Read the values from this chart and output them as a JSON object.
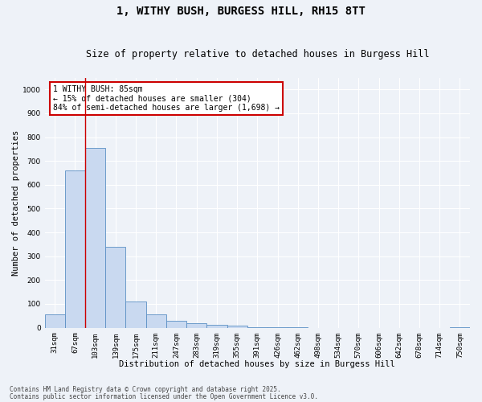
{
  "title1": "1, WITHY BUSH, BURGESS HILL, RH15 8TT",
  "title2": "Size of property relative to detached houses in Burgess Hill",
  "xlabel": "Distribution of detached houses by size in Burgess Hill",
  "ylabel": "Number of detached properties",
  "categories": [
    "31sqm",
    "67sqm",
    "103sqm",
    "139sqm",
    "175sqm",
    "211sqm",
    "247sqm",
    "283sqm",
    "319sqm",
    "355sqm",
    "391sqm",
    "426sqm",
    "462sqm",
    "498sqm",
    "534sqm",
    "570sqm",
    "606sqm",
    "642sqm",
    "678sqm",
    "714sqm",
    "750sqm"
  ],
  "values": [
    55,
    660,
    755,
    340,
    110,
    55,
    30,
    20,
    12,
    8,
    3,
    1,
    1,
    0,
    0,
    0,
    0,
    0,
    0,
    0,
    2
  ],
  "bar_color": "#c9d9f0",
  "bar_edge_color": "#5b8fc4",
  "annotation_line1": "1 WITHY BUSH: 85sqm",
  "annotation_line2": "← 15% of detached houses are smaller (304)",
  "annotation_line3": "84% of semi-detached houses are larger (1,698) →",
  "annotation_box_color": "#ffffff",
  "annotation_box_edge_color": "#cc0000",
  "vline_color": "#cc0000",
  "vline_x": 1.5,
  "ylim": [
    0,
    1050
  ],
  "yticks": [
    0,
    100,
    200,
    300,
    400,
    500,
    600,
    700,
    800,
    900,
    1000
  ],
  "footer1": "Contains HM Land Registry data © Crown copyright and database right 2025.",
  "footer2": "Contains public sector information licensed under the Open Government Licence v3.0.",
  "bg_color": "#eef2f8",
  "grid_color": "#ffffff",
  "title_fontsize": 10,
  "subtitle_fontsize": 8.5,
  "tick_fontsize": 6.5,
  "label_fontsize": 7.5,
  "footer_fontsize": 5.5
}
